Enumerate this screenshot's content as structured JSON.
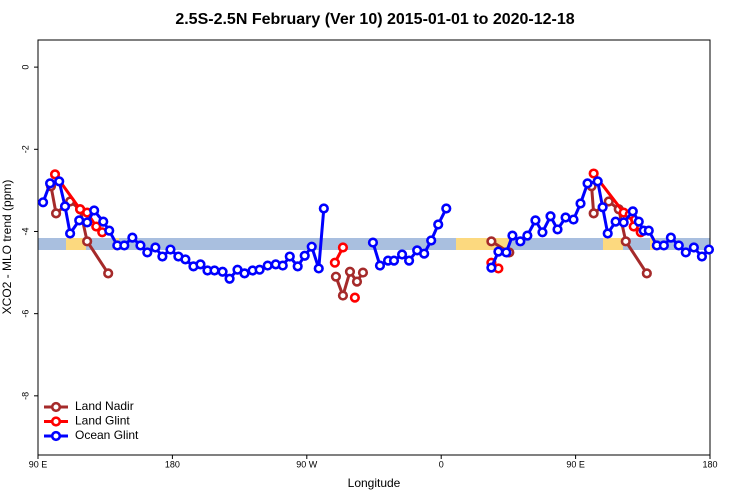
{
  "chart_data": {
    "type": "line",
    "title": "2.5S-2.5N February (Ver 10)   2015-01-01 to 2020-12-18",
    "xlabel": "Longitude",
    "ylabel": "XCO2 - MLO trend (ppm)",
    "xlim": [
      90,
      540
    ],
    "xticks": [
      {
        "value": 90,
        "label": "90 E"
      },
      {
        "value": 180,
        "label": "180"
      },
      {
        "value": 270,
        "label": "90 W"
      },
      {
        "value": 360,
        "label": "0"
      },
      {
        "value": 450,
        "label": "90 E"
      },
      {
        "value": 540,
        "label": "180"
      }
    ],
    "ylim": [
      -9.44,
      0.66
    ],
    "yticks": [
      0,
      -2,
      -4,
      -6,
      -8
    ],
    "legend": "bottom-left",
    "series": [
      {
        "name": "Land Nadir",
        "color": "#a52a2a",
        "x": [
          98.7,
          102.1,
          111.5,
          118.2,
          122.9,
          137.0,
          null,
          289.5,
          294.2,
          298.9,
          303.6,
          307.6,
          null,
          393.6,
          405.6,
          null,
          460.7,
          462.1,
          472.2,
          478.9,
          483.6,
          497.7
        ],
        "values": [
          -2.9,
          -3.56,
          -3.27,
          -3.46,
          -4.24,
          -5.02,
          null,
          -5.1,
          -5.56,
          -4.98,
          -5.22,
          -5.0,
          null,
          -4.24,
          -4.51,
          null,
          -2.9,
          -3.56,
          -3.27,
          -3.46,
          -4.24,
          -5.02
        ]
      },
      {
        "name": "Land Glint",
        "color": "#ff0000",
        "x": [
          101.4,
          118.2,
          122.9,
          129.0,
          133.0,
          null,
          288.8,
          294.2,
          null,
          302.2,
          null,
          393.6,
          398.3,
          null,
          462.1,
          482.2,
          486.2,
          488.9,
          493.6
        ],
        "values": [
          -2.61,
          -3.46,
          -3.54,
          -3.88,
          -4.02,
          null,
          -4.76,
          -4.39,
          null,
          -5.61,
          null,
          -4.76,
          -4.9,
          null,
          -2.59,
          -3.54,
          -3.59,
          -3.88,
          -4.02
        ]
      },
      {
        "name": "Ocean Glint",
        "color": "#0000ff",
        "x": [
          93.4,
          98.1,
          104.2,
          108.1,
          111.5,
          117.6,
          122.9,
          127.6,
          133.7,
          137.7,
          143.1,
          147.8,
          153.2,
          158.6,
          163.2,
          168.6,
          173.3,
          178.7,
          184.0,
          188.7,
          194.1,
          198.8,
          203.5,
          208.2,
          213.6,
          218.3,
          223.6,
          228.3,
          233.7,
          238.4,
          243.8,
          249.2,
          253.9,
          258.6,
          263.9,
          268.6,
          273.3,
          278.0,
          281.4,
          null,
          314.3,
          319.0,
          324.4,
          328.4,
          333.8,
          338.5,
          343.9,
          348.6,
          353.3,
          358.0,
          363.4,
          null,
          393.6,
          398.3,
          403.6,
          407.7,
          413.0,
          417.7,
          423.1,
          427.8,
          433.2,
          437.9,
          443.3,
          448.6,
          453.3,
          458.0,
          464.8,
          468.1,
          471.5,
          476.8,
          482.2,
          488.3,
          492.3,
          495.6,
          499.0,
          504.4,
          509.1,
          513.8,
          519.1,
          523.8,
          529.2,
          534.6,
          539.3
        ],
        "values": [
          -3.29,
          -2.83,
          -2.78,
          -3.39,
          -4.05,
          -3.73,
          -3.78,
          -3.49,
          -3.76,
          -3.98,
          -4.34,
          -4.34,
          -4.15,
          -4.34,
          -4.51,
          -4.39,
          -4.61,
          -4.44,
          -4.61,
          -4.68,
          -4.85,
          -4.8,
          -4.95,
          -4.95,
          -4.98,
          -5.15,
          -4.93,
          -5.02,
          -4.95,
          -4.93,
          -4.83,
          -4.8,
          -4.83,
          -4.61,
          -4.85,
          -4.59,
          -4.37,
          -4.9,
          -3.44,
          null,
          -4.27,
          -4.83,
          -4.71,
          -4.71,
          -4.56,
          -4.71,
          -4.46,
          -4.54,
          -4.22,
          -3.83,
          -3.44,
          null,
          -4.88,
          -4.49,
          -4.51,
          -4.1,
          -4.24,
          -4.1,
          -3.73,
          -4.02,
          -3.63,
          -3.95,
          -3.66,
          -3.71,
          -3.32,
          -2.83,
          -2.78,
          -3.41,
          -4.05,
          -3.76,
          -3.78,
          -3.51,
          -3.76,
          -3.98,
          -3.98,
          -4.34,
          -4.34,
          -4.15,
          -4.34,
          -4.51,
          -4.39,
          -4.61,
          -4.44
        ]
      }
    ]
  }
}
